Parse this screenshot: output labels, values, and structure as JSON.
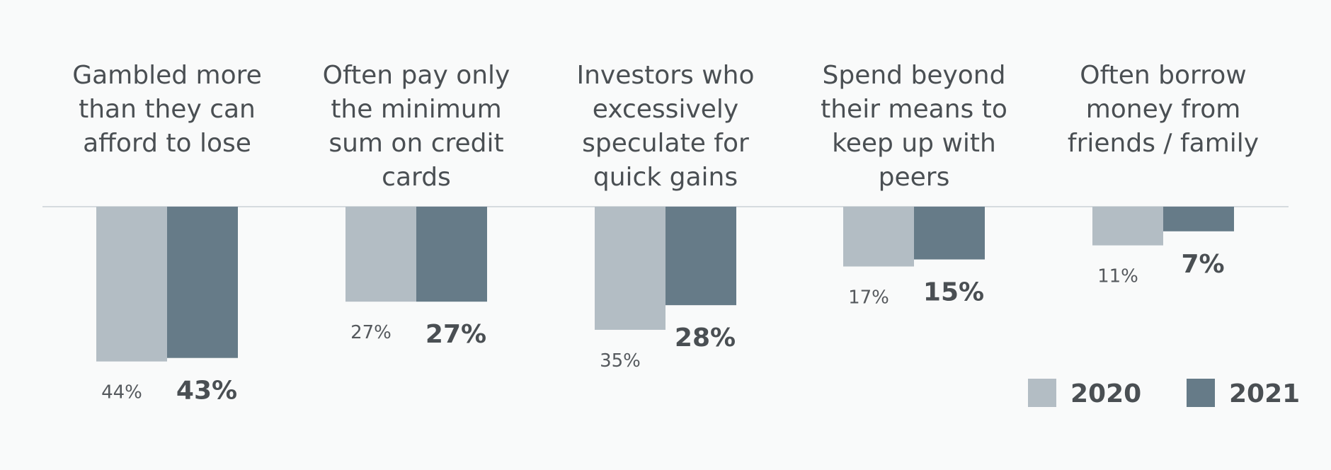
{
  "chart_data": {
    "type": "bar",
    "orientation": "vertical",
    "direction": "downward",
    "categories": [
      "Gambled more than they can afford to lose",
      "Often pay only the minimum sum on credit cards",
      "Investors who excessively speculate for quick gains",
      "Spend beyond their means to keep up with peers",
      "Often borrow money from friends / family"
    ],
    "category_lines": [
      [
        "Gambled more",
        "than they can",
        "afford to lose"
      ],
      [
        "Often pay only",
        "the minimum",
        "sum on credit",
        "cards"
      ],
      [
        "Investors who",
        "excessively",
        "speculate for",
        "quick gains"
      ],
      [
        "Spend beyond",
        "their means to",
        "keep up with",
        "peers"
      ],
      [
        "Often borrow",
        "money from",
        "friends / family"
      ]
    ],
    "series": [
      {
        "name": "2020",
        "values": [
          44,
          27,
          35,
          17,
          11
        ],
        "labels": [
          "44%",
          "27%",
          "35%",
          "17%",
          "11%"
        ],
        "color": "#b3bdc4"
      },
      {
        "name": "2021",
        "values": [
          43,
          27,
          28,
          15,
          7
        ],
        "labels": [
          "43%",
          "27%",
          "28%",
          "15%",
          "7%"
        ],
        "color": "#667b88"
      }
    ],
    "unit": "%",
    "legend_position": "bottom-right",
    "baseline_color": "#d6dbdf",
    "title": "",
    "xlabel": "",
    "ylabel": ""
  }
}
